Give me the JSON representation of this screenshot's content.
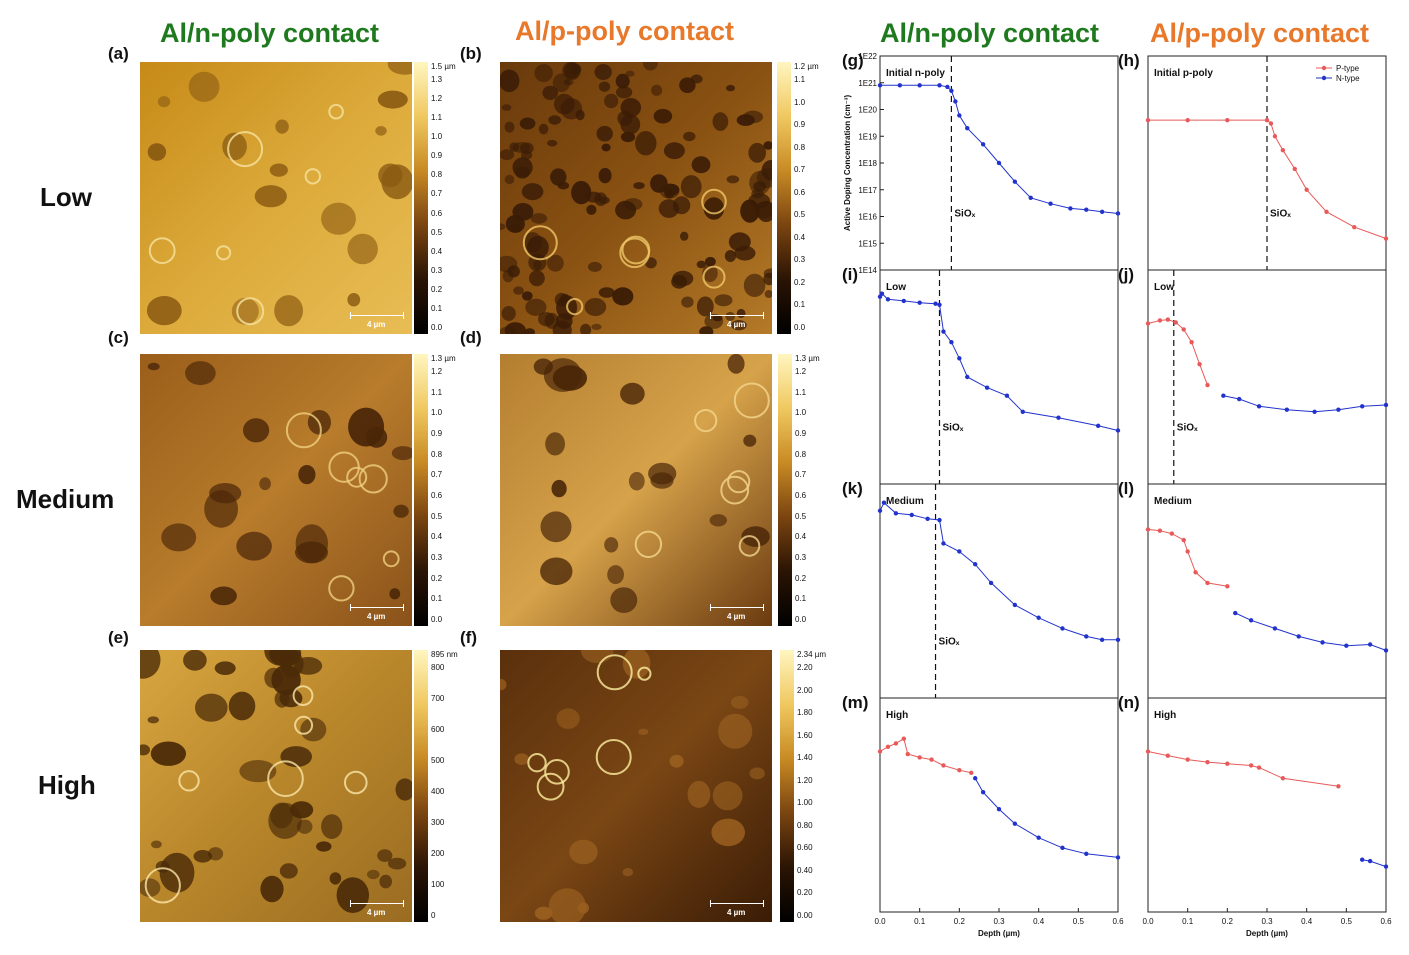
{
  "column_titles": [
    {
      "text": "Al/n-poly contact",
      "color": "#1f7a1f"
    },
    {
      "text": "Al/p-poly contact",
      "color": "#e8782a"
    },
    {
      "text": "Al/n-poly contact",
      "color": "#1f7a1f"
    },
    {
      "text": "Al/p-poly contact",
      "color": "#e8782a"
    }
  ],
  "row_labels": [
    "Low",
    "Medium",
    "High"
  ],
  "afm_panels": [
    {
      "label": "(a)",
      "cbar_max": "1.5 µm",
      "ticks": [
        "1.3",
        "1.2",
        "1.1",
        "1.0",
        "0.9",
        "0.8",
        "0.7",
        "0.6",
        "0.5",
        "0.4",
        "0.3",
        "0.2",
        "0.1",
        "0.0"
      ],
      "scale": "4 µm"
    },
    {
      "label": "(b)",
      "cbar_max": "1.2 µm",
      "ticks": [
        "1.1",
        "1.0",
        "0.9",
        "0.8",
        "0.7",
        "0.6",
        "0.5",
        "0.4",
        "0.3",
        "0.2",
        "0.1",
        "0.0"
      ],
      "scale": "4 µm"
    },
    {
      "label": "(c)",
      "cbar_max": "1.3 µm",
      "ticks": [
        "1.2",
        "1.1",
        "1.0",
        "0.9",
        "0.8",
        "0.7",
        "0.6",
        "0.5",
        "0.4",
        "0.3",
        "0.2",
        "0.1",
        "0.0"
      ],
      "scale": "4 µm"
    },
    {
      "label": "(d)",
      "cbar_max": "1.3 µm",
      "ticks": [
        "1.2",
        "1.1",
        "1.0",
        "0.9",
        "0.8",
        "0.7",
        "0.6",
        "0.5",
        "0.4",
        "0.3",
        "0.2",
        "0.1",
        "0.0"
      ],
      "scale": "4 µm"
    },
    {
      "label": "(e)",
      "cbar_max": "895 nm",
      "ticks": [
        "800",
        "700",
        "600",
        "500",
        "400",
        "300",
        "200",
        "100",
        "0"
      ],
      "scale": "4 µm"
    },
    {
      "label": "(f)",
      "cbar_max": "2.34 µm",
      "ticks": [
        "2.20",
        "2.00",
        "1.80",
        "1.60",
        "1.40",
        "1.20",
        "1.00",
        "0.80",
        "0.60",
        "0.40",
        "0.20",
        "0.00"
      ],
      "scale": "4 µm"
    }
  ],
  "chart_data": {
    "type": "scatter",
    "x_range": [
      0,
      0.6
    ],
    "y_scale": "log",
    "y_range": [
      100000000000000.0,
      1e+22
    ],
    "y_ticks": [
      "1E22",
      "1E21",
      "1E20",
      "1E19",
      "1E18",
      "1E17",
      "1E16",
      "1E15",
      "1E14"
    ],
    "x_ticks": [
      "0.0",
      "0.1",
      "0.2",
      "0.3",
      "0.4",
      "0.5",
      "0.6"
    ],
    "xlabel": "Depth (µm)",
    "ylabel": "Active Doping Concentration (cm⁻³)",
    "legend": [
      {
        "name": "P-type",
        "color": "#e85a5a"
      },
      {
        "name": "N-type",
        "color": "#2233cc"
      }
    ],
    "panels": [
      {
        "label": "(g)",
        "title": "Initial n-poly",
        "siox": "SiOₓ",
        "siox_x": 0.18,
        "series": [
          {
            "type": "N",
            "points": [
              [
                0,
                8e+20
              ],
              [
                0.05,
                8e+20
              ],
              [
                0.1,
                8e+20
              ],
              [
                0.15,
                8e+20
              ],
              [
                0.17,
                7e+20
              ],
              [
                0.18,
                5e+20
              ],
              [
                0.19,
                2e+20
              ],
              [
                0.2,
                6e+19
              ],
              [
                0.22,
                2e+19
              ],
              [
                0.26,
                5e+18
              ],
              [
                0.3,
                1e+18
              ],
              [
                0.34,
                2e+17
              ],
              [
                0.38,
                5e+16
              ],
              [
                0.43,
                3e+16
              ],
              [
                0.48,
                2e+16
              ],
              [
                0.52,
                1.8e+16
              ],
              [
                0.56,
                1.5e+16
              ],
              [
                0.6,
                1.3e+16
              ]
            ]
          }
        ]
      },
      {
        "label": "(h)",
        "title": "Initial p-poly",
        "siox": "SiOₓ",
        "siox_x": 0.3,
        "legend": true,
        "series": [
          {
            "type": "P",
            "points": [
              [
                0,
                4e+19
              ],
              [
                0.1,
                4e+19
              ],
              [
                0.2,
                4e+19
              ],
              [
                0.3,
                4e+19
              ],
              [
                0.31,
                3e+19
              ],
              [
                0.32,
                1e+19
              ],
              [
                0.34,
                3e+18
              ],
              [
                0.37,
                6e+17
              ],
              [
                0.4,
                1e+17
              ],
              [
                0.45,
                1.5e+16
              ],
              [
                0.52,
                4000000000000000.0
              ],
              [
                0.6,
                1500000000000000.0
              ]
            ]
          }
        ]
      },
      {
        "label": "(i)",
        "title": "Low",
        "siox": "SiOₓ",
        "siox_x": 0.15,
        "series": [
          {
            "type": "N",
            "points": [
              [
                0,
                1e+21
              ],
              [
                0.005,
                1.3e+21
              ],
              [
                0.02,
                8e+20
              ],
              [
                0.06,
                7e+20
              ],
              [
                0.1,
                6e+20
              ],
              [
                0.14,
                5.5e+20
              ],
              [
                0.15,
                5e+20
              ],
              [
                0.16,
                5e+19
              ],
              [
                0.18,
                2e+19
              ],
              [
                0.2,
                5e+18
              ],
              [
                0.22,
                1e+18
              ],
              [
                0.27,
                4e+17
              ],
              [
                0.32,
                2e+17
              ],
              [
                0.36,
                5e+16
              ],
              [
                0.45,
                3e+16
              ],
              [
                0.55,
                1.5e+16
              ],
              [
                0.6,
                1e+16
              ]
            ]
          }
        ]
      },
      {
        "label": "(j)",
        "title": "Low",
        "siox": "SiOₓ",
        "siox_x": 0.065,
        "series": [
          {
            "type": "P",
            "points": [
              [
                0,
                1e+20
              ],
              [
                0.03,
                1.3e+20
              ],
              [
                0.05,
                1.4e+20
              ],
              [
                0.07,
                1.1e+20
              ],
              [
                0.09,
                6e+19
              ],
              [
                0.11,
                2e+19
              ],
              [
                0.13,
                3e+18
              ],
              [
                0.15,
                5e+17
              ]
            ]
          },
          {
            "type": "N",
            "points": [
              [
                0.19,
                2e+17
              ],
              [
                0.23,
                1.5e+17
              ],
              [
                0.28,
                8e+16
              ],
              [
                0.35,
                6e+16
              ],
              [
                0.42,
                5e+16
              ],
              [
                0.48,
                6e+16
              ],
              [
                0.54,
                8e+16
              ],
              [
                0.6,
                9e+16
              ]
            ]
          }
        ]
      },
      {
        "label": "(k)",
        "title": "Medium",
        "siox": "SiOₓ",
        "siox_x": 0.14,
        "series": [
          {
            "type": "N",
            "points": [
              [
                0,
                1e+21
              ],
              [
                0.01,
                2e+21
              ],
              [
                0.04,
                8e+20
              ],
              [
                0.08,
                7e+20
              ],
              [
                0.12,
                5e+20
              ],
              [
                0.15,
                4.5e+20
              ],
              [
                0.16,
                6e+19
              ],
              [
                0.2,
                3e+19
              ],
              [
                0.24,
                1e+19
              ],
              [
                0.28,
                2e+18
              ],
              [
                0.34,
                3e+17
              ],
              [
                0.4,
                1e+17
              ],
              [
                0.46,
                4e+16
              ],
              [
                0.52,
                2e+16
              ],
              [
                0.56,
                1.5e+16
              ],
              [
                0.6,
                1.5e+16
              ]
            ]
          }
        ]
      },
      {
        "label": "(l)",
        "title": "Medium",
        "siox": "",
        "siox_x": null,
        "series": [
          {
            "type": "P",
            "points": [
              [
                0,
                2e+20
              ],
              [
                0.03,
                1.8e+20
              ],
              [
                0.06,
                1.4e+20
              ],
              [
                0.09,
                8e+19
              ],
              [
                0.1,
                3e+19
              ],
              [
                0.12,
                5e+18
              ],
              [
                0.15,
                2e+18
              ],
              [
                0.2,
                1.5e+18
              ]
            ]
          },
          {
            "type": "N",
            "points": [
              [
                0.22,
                1.5e+17
              ],
              [
                0.26,
                8e+16
              ],
              [
                0.32,
                4e+16
              ],
              [
                0.38,
                2e+16
              ],
              [
                0.44,
                1.2e+16
              ],
              [
                0.5,
                9000000000000000.0
              ],
              [
                0.56,
                1e+16
              ],
              [
                0.6,
                6000000000000000.0
              ]
            ]
          }
        ]
      },
      {
        "label": "(m)",
        "title": "High",
        "siox": "",
        "siox_x": null,
        "series": [
          {
            "type": "P",
            "points": [
              [
                0,
                1e+20
              ],
              [
                0.02,
                1.5e+20
              ],
              [
                0.04,
                2e+20
              ],
              [
                0.06,
                3e+20
              ],
              [
                0.07,
                8e+19
              ],
              [
                0.1,
                6e+19
              ],
              [
                0.13,
                5e+19
              ],
              [
                0.16,
                3e+19
              ],
              [
                0.2,
                2e+19
              ],
              [
                0.23,
                1.6e+19
              ]
            ]
          },
          {
            "type": "N",
            "points": [
              [
                0.24,
                1e+19
              ],
              [
                0.26,
                3e+18
              ],
              [
                0.3,
                7e+17
              ],
              [
                0.34,
                2e+17
              ],
              [
                0.4,
                6e+16
              ],
              [
                0.46,
                2.5e+16
              ],
              [
                0.52,
                1.5e+16
              ],
              [
                0.6,
                1.1e+16
              ]
            ]
          }
        ]
      },
      {
        "label": "(n)",
        "title": "High",
        "siox": "",
        "siox_x": null,
        "series": [
          {
            "type": "P",
            "points": [
              [
                0,
                1e+20
              ],
              [
                0.05,
                7e+19
              ],
              [
                0.1,
                5e+19
              ],
              [
                0.15,
                4e+19
              ],
              [
                0.2,
                3.5e+19
              ],
              [
                0.26,
                3e+19
              ],
              [
                0.28,
                2.5e+19
              ],
              [
                0.34,
                1e+19
              ],
              [
                0.48,
                5e+18
              ]
            ]
          },
          {
            "type": "N",
            "points": [
              [
                0.54,
                9000000000000000.0
              ],
              [
                0.56,
                8000000000000000.0
              ],
              [
                0.6,
                5000000000000000.0
              ]
            ]
          }
        ]
      }
    ]
  }
}
